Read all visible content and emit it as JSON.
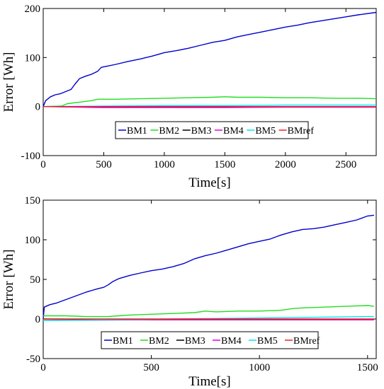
{
  "chart_data": [
    {
      "type": "line",
      "xlabel": "Time[s]",
      "ylabel": "Error [Wh]",
      "xlim": [
        0,
        2750
      ],
      "ylim": [
        -100,
        200
      ],
      "xticks": [
        0,
        500,
        1000,
        1500,
        2000,
        2500
      ],
      "yticks": [
        -100,
        0,
        100,
        200
      ],
      "grid": false,
      "legend": {
        "placement": "center",
        "orientation": "horizontal"
      },
      "series": [
        {
          "name": "BM1",
          "color": "#0000cc",
          "x": [
            0,
            20,
            60,
            100,
            140,
            180,
            230,
            260,
            300,
            350,
            400,
            450,
            480,
            520,
            600,
            700,
            800,
            900,
            1000,
            1100,
            1200,
            1300,
            1400,
            1500,
            1600,
            1700,
            1800,
            1900,
            2000,
            2100,
            2200,
            2300,
            2400,
            2500,
            2600,
            2750
          ],
          "y": [
            0,
            12,
            20,
            24,
            26,
            30,
            35,
            45,
            57,
            62,
            66,
            72,
            80,
            82,
            86,
            92,
            97,
            103,
            110,
            114,
            119,
            125,
            131,
            135,
            142,
            147,
            152,
            157,
            162,
            166,
            171,
            175,
            179,
            183,
            187,
            192
          ]
        },
        {
          "name": "BM2",
          "color": "#22dd22",
          "x": [
            0,
            150,
            200,
            300,
            400,
            450,
            500,
            600,
            800,
            1000,
            1200,
            1400,
            1500,
            1600,
            1800,
            2000,
            2200,
            2400,
            2600,
            2750
          ],
          "y": [
            0,
            1,
            6,
            9,
            12,
            15,
            15,
            15,
            16,
            17,
            18,
            19,
            20,
            19,
            19,
            18,
            18,
            17,
            17,
            16
          ]
        },
        {
          "name": "BM3",
          "color": "#000000",
          "x": [
            0,
            500,
            1000,
            1500,
            2000,
            2500,
            2750
          ],
          "y": [
            0,
            -1,
            -1,
            -1,
            -1,
            -1,
            -1
          ]
        },
        {
          "name": "BM4",
          "color": "#dd00dd",
          "x": [
            0,
            500,
            1000,
            1500,
            2000,
            2500,
            2750
          ],
          "y": [
            0,
            -2,
            -2,
            -2,
            -1,
            -1,
            -1
          ]
        },
        {
          "name": "BM5",
          "color": "#00e5ee",
          "x": [
            0,
            500,
            1000,
            1500,
            2000,
            2500,
            2750
          ],
          "y": [
            0,
            1,
            2,
            2,
            3,
            3,
            3
          ]
        },
        {
          "name": "BMref",
          "color": "#ee2222",
          "x": [
            0,
            500,
            1000,
            1500,
            2000,
            2500,
            2750
          ],
          "y": [
            0,
            0,
            0,
            0,
            0,
            0,
            0
          ]
        }
      ]
    },
    {
      "type": "line",
      "xlabel": "Time[s]",
      "ylabel": "Error [Wh]",
      "xlim": [
        0,
        1540
      ],
      "ylim": [
        -50,
        150
      ],
      "xticks": [
        0,
        500,
        1000,
        1500
      ],
      "yticks": [
        -50,
        0,
        50,
        100,
        150
      ],
      "grid": false,
      "legend": {
        "placement": "bottom-center",
        "orientation": "horizontal"
      },
      "series": [
        {
          "name": "BM1",
          "color": "#0000cc",
          "x": [
            0,
            5,
            30,
            60,
            100,
            150,
            200,
            250,
            280,
            300,
            320,
            350,
            400,
            450,
            500,
            550,
            600,
            650,
            700,
            750,
            800,
            850,
            900,
            950,
            1000,
            1050,
            1080,
            1100,
            1150,
            1200,
            1250,
            1300,
            1350,
            1400,
            1450,
            1500,
            1530
          ],
          "y": [
            0,
            15,
            18,
            20,
            24,
            29,
            34,
            38,
            40,
            43,
            47,
            51,
            55,
            58,
            61,
            63,
            66,
            70,
            76,
            80,
            83,
            87,
            91,
            95,
            98,
            101,
            104,
            106,
            110,
            113,
            114,
            116,
            119,
            122,
            125,
            130,
            131
          ]
        },
        {
          "name": "BM2",
          "color": "#22dd22",
          "x": [
            0,
            50,
            100,
            200,
            300,
            350,
            400,
            500,
            600,
            700,
            750,
            800,
            900,
            1000,
            1100,
            1150,
            1200,
            1300,
            1400,
            1500,
            1530
          ],
          "y": [
            4,
            4,
            4,
            3,
            3,
            4,
            5,
            6,
            7,
            8,
            10,
            9,
            10,
            10,
            11,
            13,
            14,
            15,
            16,
            17,
            16
          ]
        },
        {
          "name": "BM3",
          "color": "#000000",
          "x": [
            0,
            500,
            1000,
            1500,
            1530
          ],
          "y": [
            0,
            -1,
            -1,
            -1,
            -1
          ]
        },
        {
          "name": "BM4",
          "color": "#dd00dd",
          "x": [
            0,
            500,
            1000,
            1500,
            1530
          ],
          "y": [
            -2,
            -1,
            -1,
            -1,
            -1
          ]
        },
        {
          "name": "BM5",
          "color": "#00e5ee",
          "x": [
            0,
            300,
            600,
            900,
            1200,
            1500,
            1530
          ],
          "y": [
            -2,
            -1,
            0,
            1,
            2,
            3,
            3
          ]
        },
        {
          "name": "BMref",
          "color": "#ee2222",
          "x": [
            0,
            500,
            1000,
            1500,
            1530
          ],
          "y": [
            0,
            0,
            0,
            0,
            0
          ]
        }
      ]
    }
  ]
}
